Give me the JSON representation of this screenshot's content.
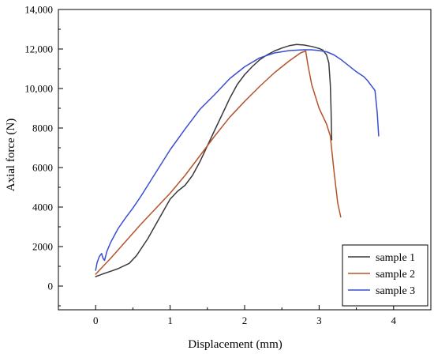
{
  "chart_data": {
    "type": "line",
    "title": "",
    "xlabel": "Displacement (mm)",
    "ylabel": "Axial force (N)",
    "xlim": [
      -0.5,
      4.5
    ],
    "ylim": [
      -1200,
      14000
    ],
    "x_ticks": [
      0,
      1,
      2,
      3,
      4
    ],
    "x_tick_labels": [
      "0",
      "1",
      "2",
      "3",
      "4"
    ],
    "y_ticks": [
      0,
      2000,
      4000,
      6000,
      8000,
      10000,
      12000,
      14000
    ],
    "y_tick_labels": [
      "0",
      "2000",
      "4000",
      "6000",
      "8000",
      "10,000",
      "12,000",
      "14,000"
    ],
    "grid": false,
    "legend_position": "bottom-right",
    "series": [
      {
        "name": "sample 1",
        "color": "#3a3a3a",
        "points": [
          [
            0.0,
            480
          ],
          [
            0.05,
            550
          ],
          [
            0.1,
            620
          ],
          [
            0.2,
            750
          ],
          [
            0.3,
            880
          ],
          [
            0.45,
            1150
          ],
          [
            0.55,
            1550
          ],
          [
            0.7,
            2400
          ],
          [
            0.85,
            3400
          ],
          [
            1.0,
            4400
          ],
          [
            1.1,
            4800
          ],
          [
            1.2,
            5100
          ],
          [
            1.3,
            5600
          ],
          [
            1.4,
            6300
          ],
          [
            1.5,
            7100
          ],
          [
            1.6,
            7900
          ],
          [
            1.7,
            8700
          ],
          [
            1.8,
            9500
          ],
          [
            1.9,
            10200
          ],
          [
            2.0,
            10700
          ],
          [
            2.1,
            11100
          ],
          [
            2.2,
            11450
          ],
          [
            2.3,
            11700
          ],
          [
            2.4,
            11900
          ],
          [
            2.5,
            12050
          ],
          [
            2.6,
            12170
          ],
          [
            2.7,
            12230
          ],
          [
            2.8,
            12200
          ],
          [
            2.9,
            12130
          ],
          [
            3.0,
            12030
          ],
          [
            3.05,
            11950
          ],
          [
            3.1,
            11700
          ],
          [
            3.13,
            11300
          ],
          [
            3.15,
            10200
          ],
          [
            3.16,
            9000
          ],
          [
            3.165,
            8000
          ],
          [
            3.17,
            7400
          ]
        ]
      },
      {
        "name": "sample 2",
        "color": "#b5542a",
        "points": [
          [
            0.0,
            600
          ],
          [
            0.1,
            1000
          ],
          [
            0.2,
            1400
          ],
          [
            0.4,
            2250
          ],
          [
            0.6,
            3100
          ],
          [
            0.8,
            3900
          ],
          [
            1.0,
            4700
          ],
          [
            1.2,
            5600
          ],
          [
            1.4,
            6600
          ],
          [
            1.6,
            7600
          ],
          [
            1.8,
            8550
          ],
          [
            2.0,
            9350
          ],
          [
            2.2,
            10100
          ],
          [
            2.4,
            10800
          ],
          [
            2.6,
            11400
          ],
          [
            2.75,
            11800
          ],
          [
            2.82,
            11900
          ],
          [
            2.85,
            11200
          ],
          [
            2.9,
            10200
          ],
          [
            3.0,
            9000
          ],
          [
            3.1,
            8200
          ],
          [
            3.15,
            7600
          ],
          [
            3.2,
            5800
          ],
          [
            3.25,
            4200
          ],
          [
            3.29,
            3500
          ]
        ]
      },
      {
        "name": "sample 3",
        "color": "#3a4fd0",
        "points": [
          [
            0.0,
            800
          ],
          [
            0.02,
            1200
          ],
          [
            0.05,
            1500
          ],
          [
            0.08,
            1650
          ],
          [
            0.1,
            1400
          ],
          [
            0.12,
            1300
          ],
          [
            0.15,
            1750
          ],
          [
            0.2,
            2200
          ],
          [
            0.3,
            2900
          ],
          [
            0.4,
            3450
          ],
          [
            0.5,
            3950
          ],
          [
            0.6,
            4500
          ],
          [
            0.7,
            5100
          ],
          [
            0.8,
            5700
          ],
          [
            0.9,
            6300
          ],
          [
            1.0,
            6900
          ],
          [
            1.2,
            7950
          ],
          [
            1.4,
            8950
          ],
          [
            1.6,
            9700
          ],
          [
            1.8,
            10500
          ],
          [
            2.0,
            11100
          ],
          [
            2.2,
            11550
          ],
          [
            2.4,
            11800
          ],
          [
            2.6,
            11920
          ],
          [
            2.8,
            11960
          ],
          [
            2.9,
            11960
          ],
          [
            3.0,
            11920
          ],
          [
            3.1,
            11860
          ],
          [
            3.2,
            11700
          ],
          [
            3.3,
            11450
          ],
          [
            3.4,
            11150
          ],
          [
            3.5,
            10850
          ],
          [
            3.6,
            10600
          ],
          [
            3.65,
            10400
          ],
          [
            3.7,
            10150
          ],
          [
            3.75,
            9900
          ],
          [
            3.78,
            8800
          ],
          [
            3.8,
            7600
          ]
        ]
      }
    ]
  }
}
